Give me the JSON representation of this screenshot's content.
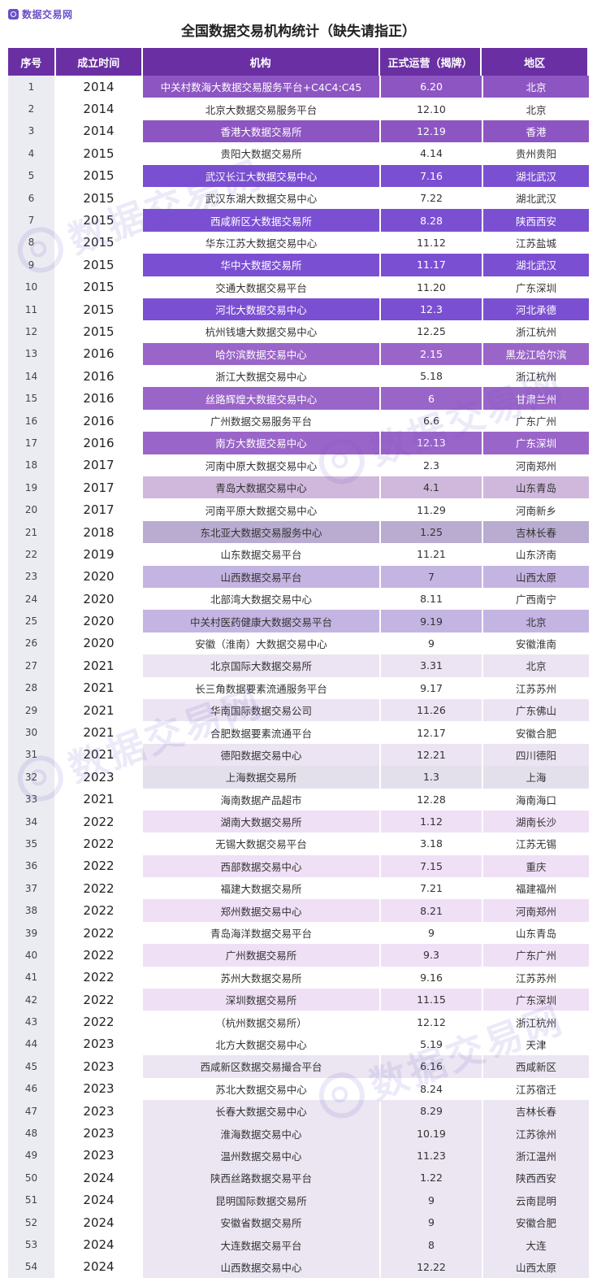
{
  "brand": {
    "logo_text": "数据交易网",
    "watermark_text": "数据交易网"
  },
  "title": "全国数据交易机构统计（缺失请指正）",
  "columns": [
    "序号",
    "成立时间",
    "机构",
    "正式运营（揭牌）",
    "地区"
  ],
  "colors": {
    "header": "#6a2fa3",
    "index_column": "#ebebf2",
    "accent": "#6a4fc8"
  },
  "rows": [
    {
      "idx": "1",
      "year": "2014",
      "org": "中关村数海大数据交易服务平台+C4C4:C45",
      "date": "6.20",
      "region": "北京",
      "bg": "#8d55c2",
      "fg": "#ffffff"
    },
    {
      "idx": "2",
      "year": "2014",
      "org": "北京大数据交易服务平台",
      "date": "12.10",
      "region": "北京",
      "bg": "#ffffff",
      "fg": "#333333"
    },
    {
      "idx": "3",
      "year": "2014",
      "org": "香港大数据交易所",
      "date": "12.19",
      "region": "香港",
      "bg": "#8d55c2",
      "fg": "#ffffff"
    },
    {
      "idx": "4",
      "year": "2015",
      "org": "贵阳大数据交易所",
      "date": "4.14",
      "region": "贵州贵阳",
      "bg": "#ffffff",
      "fg": "#333333"
    },
    {
      "idx": "5",
      "year": "2015",
      "org": "武汉长江大数据交易中心",
      "date": "7.16",
      "region": "湖北武汉",
      "bg": "#7b4fd2",
      "fg": "#ffffff"
    },
    {
      "idx": "6",
      "year": "2015",
      "org": "武汉东湖大数据交易中心",
      "date": "7.22",
      "region": "湖北武汉",
      "bg": "#ffffff",
      "fg": "#333333"
    },
    {
      "idx": "7",
      "year": "2015",
      "org": "西咸新区大数据交易所",
      "date": "8.28",
      "region": "陕西西安",
      "bg": "#7b4fd2",
      "fg": "#ffffff"
    },
    {
      "idx": "8",
      "year": "2015",
      "org": "华东江苏大数据交易中心",
      "date": "11.12",
      "region": "江苏盐城",
      "bg": "#ffffff",
      "fg": "#333333"
    },
    {
      "idx": "9",
      "year": "2015",
      "org": "华中大数据交易所",
      "date": "11.17",
      "region": "湖北武汉",
      "bg": "#7b4fd2",
      "fg": "#ffffff"
    },
    {
      "idx": "10",
      "year": "2015",
      "org": "交通大数据交易平台",
      "date": "11.20",
      "region": "广东深圳",
      "bg": "#ffffff",
      "fg": "#333333"
    },
    {
      "idx": "11",
      "year": "2015",
      "org": "河北大数据交易中心",
      "date": "12.3",
      "region": "河北承德",
      "bg": "#7b4fd2",
      "fg": "#ffffff"
    },
    {
      "idx": "12",
      "year": "2015",
      "org": "杭州钱塘大数据交易中心",
      "date": "12.25",
      "region": "浙江杭州",
      "bg": "#ffffff",
      "fg": "#333333"
    },
    {
      "idx": "13",
      "year": "2016",
      "org": "哈尔滨数据交易中心",
      "date": "2.15",
      "region": "黑龙江哈尔滨",
      "bg": "#9a65c8",
      "fg": "#ffffff"
    },
    {
      "idx": "14",
      "year": "2016",
      "org": "浙江大数据交易中心",
      "date": "5.18",
      "region": "浙江杭州",
      "bg": "#ffffff",
      "fg": "#333333"
    },
    {
      "idx": "15",
      "year": "2016",
      "org": "丝路辉煌大数据交易中心",
      "date": "6",
      "region": "甘肃兰州",
      "bg": "#9a65c8",
      "fg": "#ffffff"
    },
    {
      "idx": "16",
      "year": "2016",
      "org": "广州数据交易服务平台",
      "date": "6.6",
      "region": "广东广州",
      "bg": "#ffffff",
      "fg": "#333333"
    },
    {
      "idx": "17",
      "year": "2016",
      "org": "南方大数据交易中心",
      "date": "12.13",
      "region": "广东深圳",
      "bg": "#9a65c8",
      "fg": "#ffffff"
    },
    {
      "idx": "18",
      "year": "2017",
      "org": "河南中原大数据交易中心",
      "date": "2.3",
      "region": "河南郑州",
      "bg": "#ffffff",
      "fg": "#333333"
    },
    {
      "idx": "19",
      "year": "2017",
      "org": "青岛大数据交易中心",
      "date": "4.1",
      "region": "山东青岛",
      "bg": "#cfb8dc",
      "fg": "#333333"
    },
    {
      "idx": "20",
      "year": "2017",
      "org": "河南平原大数据交易中心",
      "date": "11.29",
      "region": "河南新乡",
      "bg": "#ffffff",
      "fg": "#333333"
    },
    {
      "idx": "21",
      "year": "2018",
      "org": "东北亚大数据交易服务中心",
      "date": "1.25",
      "region": "吉林长春",
      "bg": "#b9acd0",
      "fg": "#333333"
    },
    {
      "idx": "22",
      "year": "2019",
      "org": "山东数据交易平台",
      "date": "11.21",
      "region": "山东济南",
      "bg": "#ffffff",
      "fg": "#333333"
    },
    {
      "idx": "23",
      "year": "2020",
      "org": "山西数据交易平台",
      "date": "7",
      "region": "山西太原",
      "bg": "#c4b4e2",
      "fg": "#333333"
    },
    {
      "idx": "24",
      "year": "2020",
      "org": "北部湾大数据交易中心",
      "date": "8.11",
      "region": "广西南宁",
      "bg": "#ffffff",
      "fg": "#333333"
    },
    {
      "idx": "25",
      "year": "2020",
      "org": "中关村医药健康大数据交易平台",
      "date": "9.19",
      "region": "北京",
      "bg": "#c4b4e2",
      "fg": "#333333"
    },
    {
      "idx": "26",
      "year": "2020",
      "org": "安徽（淮南）大数据交易中心",
      "date": "9",
      "region": "安徽淮南",
      "bg": "#ffffff",
      "fg": "#333333"
    },
    {
      "idx": "27",
      "year": "2021",
      "org": "北京国际大数据交易所",
      "date": "3.31",
      "region": "北京",
      "bg": "#ece4f2",
      "fg": "#333333"
    },
    {
      "idx": "28",
      "year": "2021",
      "org": "长三角数据要素流通服务平台",
      "date": "9.17",
      "region": "江苏苏州",
      "bg": "#ffffff",
      "fg": "#333333"
    },
    {
      "idx": "29",
      "year": "2021",
      "org": "华南国际数据交易公司",
      "date": "11.26",
      "region": "广东佛山",
      "bg": "#ece4f2",
      "fg": "#333333"
    },
    {
      "idx": "30",
      "year": "2021",
      "org": "合肥数据要素流通平台",
      "date": "12.17",
      "region": "安徽合肥",
      "bg": "#ffffff",
      "fg": "#333333"
    },
    {
      "idx": "31",
      "year": "2021",
      "org": "德阳数据交易中心",
      "date": "12.21",
      "region": "四川德阳",
      "bg": "#ece4f2",
      "fg": "#333333"
    },
    {
      "idx": "32",
      "year": "2023",
      "org": "上海数据交易所",
      "date": "1.3",
      "region": "上海",
      "bg": "#e3e0ec",
      "fg": "#333333"
    },
    {
      "idx": "33",
      "year": "2021",
      "org": "海南数据产品超市",
      "date": "12.28",
      "region": "海南海口",
      "bg": "#ffffff",
      "fg": "#333333"
    },
    {
      "idx": "34",
      "year": "2022",
      "org": "湖南大数据交易所",
      "date": "1.12",
      "region": "湖南长沙",
      "bg": "#efe0f6",
      "fg": "#333333"
    },
    {
      "idx": "35",
      "year": "2022",
      "org": "无锡大数据交易平台",
      "date": "3.18",
      "region": "江苏无锡",
      "bg": "#ffffff",
      "fg": "#333333"
    },
    {
      "idx": "36",
      "year": "2022",
      "org": "西部数据交易中心",
      "date": "7.15",
      "region": "重庆",
      "bg": "#efe0f6",
      "fg": "#333333"
    },
    {
      "idx": "37",
      "year": "2022",
      "org": "福建大数据交易所",
      "date": "7.21",
      "region": "福建福州",
      "bg": "#ffffff",
      "fg": "#333333"
    },
    {
      "idx": "38",
      "year": "2022",
      "org": "郑州数据交易中心",
      "date": "8.21",
      "region": "河南郑州",
      "bg": "#efe0f6",
      "fg": "#333333"
    },
    {
      "idx": "39",
      "year": "2022",
      "org": "青岛海洋数据交易平台",
      "date": "9",
      "region": "山东青岛",
      "bg": "#ffffff",
      "fg": "#333333"
    },
    {
      "idx": "40",
      "year": "2022",
      "org": "广州数据交易所",
      "date": "9.3",
      "region": "广东广州",
      "bg": "#efe0f6",
      "fg": "#333333"
    },
    {
      "idx": "41",
      "year": "2022",
      "org": "苏州大数据交易所",
      "date": "9.16",
      "region": "江苏苏州",
      "bg": "#ffffff",
      "fg": "#333333"
    },
    {
      "idx": "42",
      "year": "2022",
      "org": "深圳数据交易所",
      "date": "11.15",
      "region": "广东深圳",
      "bg": "#efe0f6",
      "fg": "#333333"
    },
    {
      "idx": "43",
      "year": "2022",
      "org": "（杭州数据交易所）",
      "date": "12.12",
      "region": "浙江杭州",
      "bg": "#ffffff",
      "fg": "#333333"
    },
    {
      "idx": "44",
      "year": "2023",
      "org": "北方大数据交易中心",
      "date": "5.19",
      "region": "天津",
      "bg": "#ffffff",
      "fg": "#333333"
    },
    {
      "idx": "45",
      "year": "2023",
      "org": "西咸新区数据交易撮合平台",
      "date": "6.16",
      "region": "西咸新区",
      "bg": "#ebe6f2",
      "fg": "#333333"
    },
    {
      "idx": "46",
      "year": "2023",
      "org": "苏北大数据交易中心",
      "date": "8.24",
      "region": "江苏宿迁",
      "bg": "#ffffff",
      "fg": "#333333"
    },
    {
      "idx": "47",
      "year": "2023",
      "org": "长春大数据交易中心",
      "date": "8.29",
      "region": "吉林长春",
      "bg": "#ebe6f2",
      "fg": "#333333"
    },
    {
      "idx": "48",
      "year": "2023",
      "org": "淮海数据交易中心",
      "date": "10.19",
      "region": "江苏徐州",
      "bg": "#ebe6f2",
      "fg": "#333333"
    },
    {
      "idx": "49",
      "year": "2023",
      "org": "温州数据交易中心",
      "date": "11.23",
      "region": "浙江温州",
      "bg": "#ebe6f2",
      "fg": "#333333"
    },
    {
      "idx": "50",
      "year": "2024",
      "org": "陕西丝路数据交易平台",
      "date": "1.22",
      "region": "陕西西安",
      "bg": "#ebe6f2",
      "fg": "#333333"
    },
    {
      "idx": "51",
      "year": "2024",
      "org": "昆明国际数据交易所",
      "date": "9",
      "region": "云南昆明",
      "bg": "#ebe6f2",
      "fg": "#333333"
    },
    {
      "idx": "52",
      "year": "2024",
      "org": "安徽省数据交易所",
      "date": "9",
      "region": "安徽合肥",
      "bg": "#ebe6f2",
      "fg": "#333333"
    },
    {
      "idx": "53",
      "year": "2024",
      "org": "大连数据交易平台",
      "date": "8",
      "region": "大连",
      "bg": "#ebe6f2",
      "fg": "#333333"
    },
    {
      "idx": "54",
      "year": "2024",
      "org": "山西数据交易中心",
      "date": "12.22",
      "region": "山西太原",
      "bg": "#ebe6f2",
      "fg": "#333333"
    }
  ]
}
